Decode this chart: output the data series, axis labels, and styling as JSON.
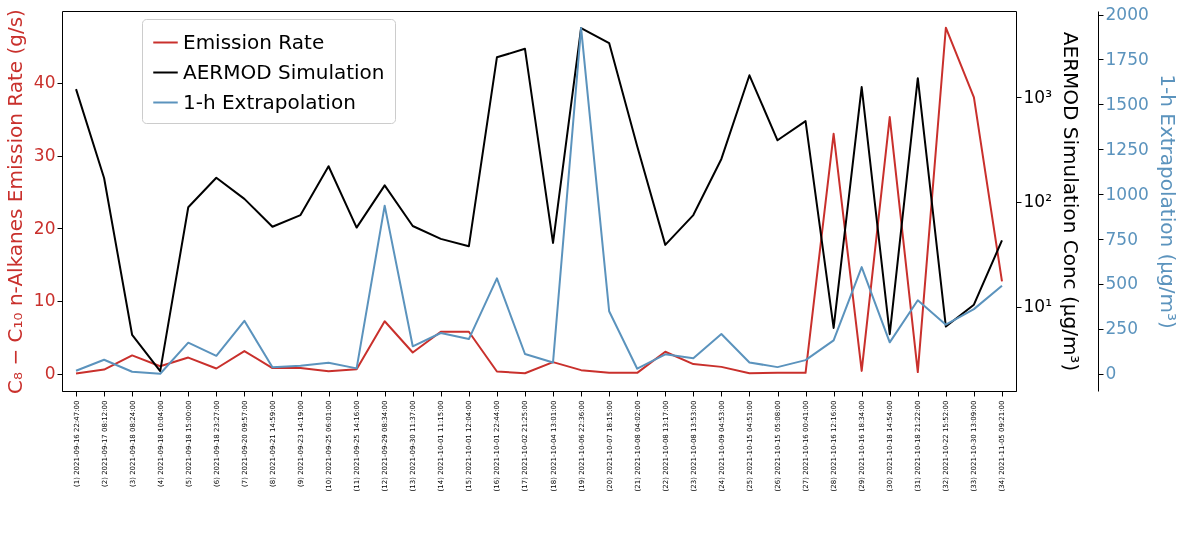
{
  "chart_data": {
    "type": "line",
    "ylabel": "C₈ − C₁₀ n-Alkanes Emission Rate (g/s)",
    "y2label": "AERMOD Simulation Conc (μg/m³)",
    "y3label": "1-h Extrapolation (μg/m³)",
    "categories": [
      "(1) 2021-09-16 22:47:00",
      "(2) 2021-09-17 08:12:00",
      "(3) 2021-09-18 08:24:00",
      "(4) 2021-09-18 10:04:00",
      "(5) 2021-09-18 15:00:00",
      "(6) 2021-09-18 23:27:00",
      "(7) 2021-09-20 09:57:00",
      "(8) 2021-09-21 14:59:00",
      "(9) 2021-09-23 14:19:00",
      "(10) 2021-09-25 06:01:00",
      "(11) 2021-09-25 14:16:00",
      "(12) 2021-09-29 08:34:00",
      "(13) 2021-09-30 11:37:00",
      "(14) 2021-10-01 11:15:00",
      "(15) 2021-10-01 12:04:00",
      "(16) 2021-10-01 22:44:00",
      "(17) 2021-10-02 21:25:00",
      "(18) 2021-10-04 13:01:00",
      "(19) 2021-10-06 22:36:00",
      "(20) 2021-10-07 18:15:00",
      "(21) 2021-10-08 04:02:00",
      "(22) 2021-10-08 13:17:00",
      "(23) 2021-10-08 13:53:00",
      "(24) 2021-10-09 04:53:00",
      "(25) 2021-10-15 04:51:00",
      "(26) 2021-10-15 05:08:00",
      "(27) 2021-10-16 00:41:00",
      "(28) 2021-10-16 12:16:00",
      "(29) 2021-10-16 18:34:00",
      "(30) 2021-10-18 14:54:00",
      "(31) 2021-10-18 21:22:00",
      "(32) 2021-10-22 15:52:00",
      "(33) 2021-10-30 13:09:00",
      "(34) 2021-11-05 09:21:00"
    ],
    "series": [
      {
        "name": "Emission Rate",
        "color": "#c9302c",
        "values": [
          0,
          0.55,
          2.5,
          1.0,
          2.2,
          0.7,
          3.1,
          0.75,
          0.75,
          0.33,
          0.6,
          7.2,
          2.9,
          5.75,
          5.75,
          0.28,
          0.05,
          1.57,
          0.47,
          0.1,
          0.1,
          3.0,
          1.3,
          0.92,
          0.05,
          0.1,
          0.1,
          33.0,
          0.37,
          35.3,
          0.2,
          47.6,
          38.0,
          12.7
        ]
      },
      {
        "name": "AERMOD Simulation",
        "color": "#000000",
        "axis": "y2",
        "values": [
          1190,
          169,
          5.4,
          2.44,
          89,
          170,
          107,
          58,
          75,
          219,
          57,
          144,
          59,
          44.5,
          37.8,
          2390,
          2880,
          40.7,
          4540,
          3270,
          339,
          39,
          75,
          257,
          1610,
          387,
          590,
          6.3,
          1245,
          5.5,
          1513,
          6.5,
          10.5,
          43
        ]
      },
      {
        "name": "1-h Extrapolation",
        "color": "#5b93bd",
        "axis": "y3",
        "values": [
          17,
          78,
          11,
          0,
          173,
          100,
          295,
          36,
          45,
          61,
          30,
          936,
          153,
          227,
          193,
          531,
          110,
          63,
          1926,
          348,
          28,
          108,
          86,
          221,
          63,
          37,
          76,
          186,
          594,
          175,
          409,
          273,
          360,
          490
        ]
      }
    ],
    "ylim": [
      -2.4,
      49.9
    ],
    "yticks": [
      0,
      10,
      20,
      30,
      40
    ],
    "y2lim": [
      1.58,
      6600
    ],
    "y2ticks": [
      {
        "value": 10,
        "label": "10¹"
      },
      {
        "value": 100,
        "label": "10²"
      },
      {
        "value": 1000,
        "label": "10³"
      }
    ],
    "y3lim": [
      -96,
      2020
    ],
    "y3ticks": [
      0,
      250,
      500,
      750,
      1000,
      1250,
      1500,
      1750,
      2000
    ],
    "log": "y2",
    "grid": false,
    "legend": "top left",
    "line_style": "solid"
  }
}
